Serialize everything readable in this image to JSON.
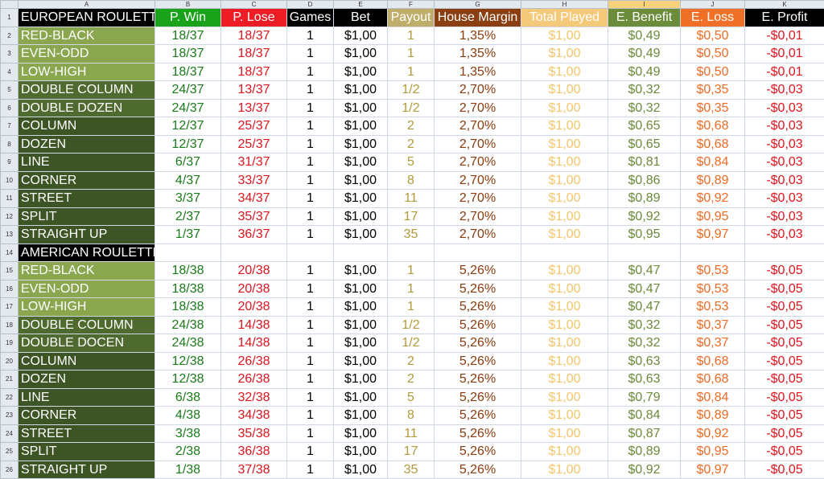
{
  "column_letters": [
    "A",
    "B",
    "C",
    "D",
    "E",
    "F",
    "G",
    "H",
    "I",
    "J",
    "K"
  ],
  "selected_column": "I",
  "header": {
    "row_number": "1",
    "a": "EUROPEAN ROULETTE",
    "b": "P. Win",
    "c": "P. Lose",
    "d": "Games",
    "e": "Bet",
    "f": "Payout",
    "g": "House Margin",
    "h": "Total Played",
    "i": "E. Benefit",
    "j": "E. Loss",
    "k": "E. Profit"
  },
  "colors": {
    "a_fill_gradient": [
      "#8aa050",
      "#3f5a28"
    ],
    "p_win": "#1a7a1a",
    "p_lose": "#e0141e",
    "payout": "#b09a3a",
    "house_margin": "#8a3a0c",
    "total_played": "#f2c66a",
    "e_benefit": "#6b8a3a",
    "e_loss": "#ee6a24",
    "e_profit": "#e0141e"
  },
  "rows": [
    {
      "n": "2",
      "a": "RED-BLACK",
      "b": "18/37",
      "c": "18/37",
      "d": "1",
      "e": "$1,00",
      "f": "1",
      "g": "1,35%",
      "h": "$1,00",
      "i": "$0,49",
      "j": "$0,50",
      "k": "-$0,01",
      "fill": 0
    },
    {
      "n": "3",
      "a": "EVEN-ODD",
      "b": "18/37",
      "c": "18/37",
      "d": "1",
      "e": "$1,00",
      "f": "1",
      "g": "1,35%",
      "h": "$1,00",
      "i": "$0,49",
      "j": "$0,50",
      "k": "-$0,01",
      "fill": 0
    },
    {
      "n": "4",
      "a": "LOW-HIGH",
      "b": "18/37",
      "c": "18/37",
      "d": "1",
      "e": "$1,00",
      "f": "1",
      "g": "1,35%",
      "h": "$1,00",
      "i": "$0,49",
      "j": "$0,50",
      "k": "-$0,01",
      "fill": 0
    },
    {
      "n": "5",
      "a": "DOUBLE COLUMN",
      "b": "24/37",
      "c": "13/37",
      "d": "1",
      "e": "$1,00",
      "f": "1/2",
      "g": "2,70%",
      "h": "$1,00",
      "i": "$0,32",
      "j": "$0,35",
      "k": "-$0,03",
      "fill": 1
    },
    {
      "n": "6",
      "a": "DOUBLE DOZEN",
      "b": "24/37",
      "c": "13/37",
      "d": "1",
      "e": "$1,00",
      "f": "1/2",
      "g": "2,70%",
      "h": "$1,00",
      "i": "$0,32",
      "j": "$0,35",
      "k": "-$0,03",
      "fill": 1
    },
    {
      "n": "7",
      "a": "COLUMN",
      "b": "12/37",
      "c": "25/37",
      "d": "1",
      "e": "$1,00",
      "f": "2",
      "g": "2,70%",
      "h": "$1,00",
      "i": "$0,65",
      "j": "$0,68",
      "k": "-$0,03",
      "fill": 2
    },
    {
      "n": "8",
      "a": "DOZEN",
      "b": "12/37",
      "c": "25/37",
      "d": "1",
      "e": "$1,00",
      "f": "2",
      "g": "2,70%",
      "h": "$1,00",
      "i": "$0,65",
      "j": "$0,68",
      "k": "-$0,03",
      "fill": 2
    },
    {
      "n": "9",
      "a": "LINE",
      "b": "6/37",
      "c": "31/37",
      "d": "1",
      "e": "$1,00",
      "f": "5",
      "g": "2,70%",
      "h": "$1,00",
      "i": "$0,81",
      "j": "$0,84",
      "k": "-$0,03",
      "fill": 2
    },
    {
      "n": "10",
      "a": "CORNER",
      "b": "4/37",
      "c": "33/37",
      "d": "1",
      "e": "$1,00",
      "f": "8",
      "g": "2,70%",
      "h": "$1,00",
      "i": "$0,86",
      "j": "$0,89",
      "k": "-$0,03",
      "fill": 2
    },
    {
      "n": "11",
      "a": "STREET",
      "b": "3/37",
      "c": "34/37",
      "d": "1",
      "e": "$1,00",
      "f": "11",
      "g": "2,70%",
      "h": "$1,00",
      "i": "$0,89",
      "j": "$0,92",
      "k": "-$0,03",
      "fill": 2
    },
    {
      "n": "12",
      "a": "SPLIT",
      "b": "2/37",
      "c": "35/37",
      "d": "1",
      "e": "$1,00",
      "f": "17",
      "g": "2,70%",
      "h": "$1,00",
      "i": "$0,92",
      "j": "$0,95",
      "k": "-$0,03",
      "fill": 2
    },
    {
      "n": "13",
      "a": "STRAIGHT UP",
      "b": "1/37",
      "c": "36/37",
      "d": "1",
      "e": "$1,00",
      "f": "35",
      "g": "2,70%",
      "h": "$1,00",
      "i": "$0,95",
      "j": "$0,97",
      "k": "-$0,03",
      "fill": 2
    },
    {
      "n": "14",
      "a": "AMERICAN ROULETTE",
      "b": "",
      "c": "",
      "d": "",
      "e": "",
      "f": "",
      "g": "",
      "h": "",
      "i": "",
      "j": "",
      "k": "",
      "fill": 3
    },
    {
      "n": "15",
      "a": "RED-BLACK",
      "b": "18/38",
      "c": "20/38",
      "d": "1",
      "e": "$1,00",
      "f": "1",
      "g": "5,26%",
      "h": "$1,00",
      "i": "$0,47",
      "j": "$0,53",
      "k": "-$0,05",
      "fill": 0
    },
    {
      "n": "16",
      "a": "EVEN-ODD",
      "b": "18/38",
      "c": "20/38",
      "d": "1",
      "e": "$1,00",
      "f": "1",
      "g": "5,26%",
      "h": "$1,00",
      "i": "$0,47",
      "j": "$0,53",
      "k": "-$0,05",
      "fill": 0
    },
    {
      "n": "17",
      "a": "LOW-HIGH",
      "b": "18/38",
      "c": "20/38",
      "d": "1",
      "e": "$1,00",
      "f": "1",
      "g": "5,26%",
      "h": "$1,00",
      "i": "$0,47",
      "j": "$0,53",
      "k": "-$0,05",
      "fill": 0
    },
    {
      "n": "18",
      "a": "DOUBLE COLUMN",
      "b": "24/38",
      "c": "14/38",
      "d": "1",
      "e": "$1,00",
      "f": "1/2",
      "g": "5,26%",
      "h": "$1,00",
      "i": "$0,32",
      "j": "$0,37",
      "k": "-$0,05",
      "fill": 1
    },
    {
      "n": "19",
      "a": "DOUBLE DOCEN",
      "b": "24/38",
      "c": "14/38",
      "d": "1",
      "e": "$1,00",
      "f": "1/2",
      "g": "5,26%",
      "h": "$1,00",
      "i": "$0,32",
      "j": "$0,37",
      "k": "-$0,05",
      "fill": 1
    },
    {
      "n": "20",
      "a": "COLUMN",
      "b": "12/38",
      "c": "26/38",
      "d": "1",
      "e": "$1,00",
      "f": "2",
      "g": "5,26%",
      "h": "$1,00",
      "i": "$0,63",
      "j": "$0,68",
      "k": "-$0,05",
      "fill": 2
    },
    {
      "n": "21",
      "a": "DOZEN",
      "b": "12/38",
      "c": "26/38",
      "d": "1",
      "e": "$1,00",
      "f": "2",
      "g": "5,26%",
      "h": "$1,00",
      "i": "$0,63",
      "j": "$0,68",
      "k": "-$0,05",
      "fill": 2
    },
    {
      "n": "22",
      "a": "LINE",
      "b": "6/38",
      "c": "32/38",
      "d": "1",
      "e": "$1,00",
      "f": "5",
      "g": "5,26%",
      "h": "$1,00",
      "i": "$0,79",
      "j": "$0,84",
      "k": "-$0,05",
      "fill": 2
    },
    {
      "n": "23",
      "a": "CORNER",
      "b": "4/38",
      "c": "34/38",
      "d": "1",
      "e": "$1,00",
      "f": "8",
      "g": "5,26%",
      "h": "$1,00",
      "i": "$0,84",
      "j": "$0,89",
      "k": "-$0,05",
      "fill": 2
    },
    {
      "n": "24",
      "a": "STREET",
      "b": "3/38",
      "c": "35/38",
      "d": "1",
      "e": "$1,00",
      "f": "11",
      "g": "5,26%",
      "h": "$1,00",
      "i": "$0,87",
      "j": "$0,92",
      "k": "-$0,05",
      "fill": 2
    },
    {
      "n": "25",
      "a": "SPLIT",
      "b": "2/38",
      "c": "36/38",
      "d": "1",
      "e": "$1,00",
      "f": "17",
      "g": "5,26%",
      "h": "$1,00",
      "i": "$0,89",
      "j": "$0,95",
      "k": "-$0,05",
      "fill": 2
    },
    {
      "n": "26",
      "a": "STRAIGHT UP",
      "b": "1/38",
      "c": "37/38",
      "d": "1",
      "e": "$1,00",
      "f": "35",
      "g": "5,26%",
      "h": "$1,00",
      "i": "$0,92",
      "j": "$0,97",
      "k": "-$0,05",
      "fill": 2
    }
  ]
}
